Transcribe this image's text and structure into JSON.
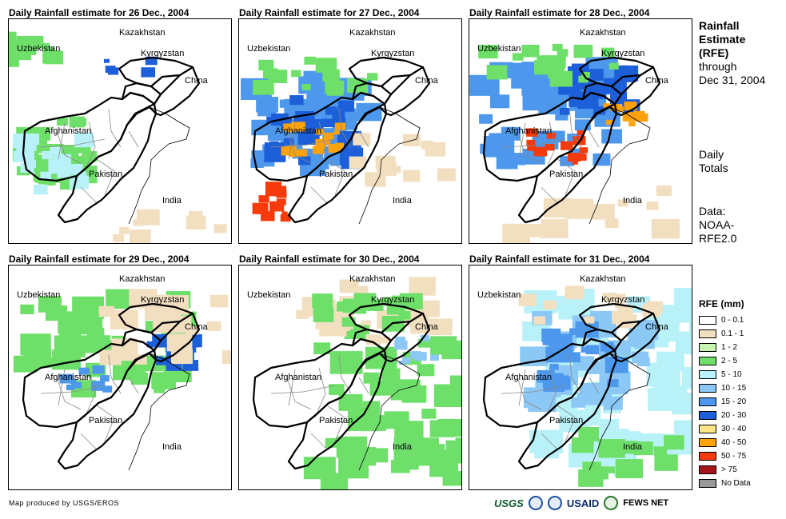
{
  "panels": [
    {
      "title": "Daily Rainfall estimate for 26 Dec., 2004"
    },
    {
      "title": "Daily Rainfall estimate for 27 Dec., 2004"
    },
    {
      "title": "Daily Rainfall estimate for 28 Dec., 2004"
    },
    {
      "title": "Daily Rainfall estimate for 29 Dec., 2004"
    },
    {
      "title": "Daily Rainfall estimate for 30 Dec., 2004"
    },
    {
      "title": "Daily Rainfall estimate for 31 Dec., 2004"
    }
  ],
  "map_labels": {
    "kazakhstan": "Kazakhstan",
    "uzbekistan": "Uzbekistan",
    "kyrgyzstan": "Kyrgyzstan",
    "china": "China",
    "afghanistan": "Afghanistan",
    "pakistan": "Pakistan",
    "india": "India"
  },
  "side": {
    "title_line1": "Rainfall",
    "title_line2": "Estimate",
    "title_line3": "(RFE)",
    "through": "through",
    "date": "Dec 31, 2004",
    "daily1": "Daily",
    "daily2": "Totals",
    "data1": "Data:",
    "data2": "NOAA-",
    "data3": "RFE2.0"
  },
  "legend": {
    "title": "RFE (mm)",
    "items": [
      {
        "label": "0 - 0.1",
        "color": "#ffffff"
      },
      {
        "label": "0.1 - 1",
        "color": "#f2dfc0"
      },
      {
        "label": "1 - 2",
        "color": "#c6f5b4"
      },
      {
        "label": "2 - 5",
        "color": "#6ee06a"
      },
      {
        "label": "5 - 10",
        "color": "#b8f2f8"
      },
      {
        "label": "10 - 15",
        "color": "#8cc8f5"
      },
      {
        "label": "15 - 20",
        "color": "#4d98ec"
      },
      {
        "label": "20 - 30",
        "color": "#1d5fd8"
      },
      {
        "label": "30 - 40",
        "color": "#fce487"
      },
      {
        "label": "40 - 50",
        "color": "#fca20a"
      },
      {
        "label": "50 - 75",
        "color": "#f53a0c"
      },
      {
        "label": "> 75",
        "color": "#a5161c"
      },
      {
        "label": "No Data",
        "color": "#999999"
      }
    ]
  },
  "credit": "Map produced by USGS/EROS",
  "logos": {
    "usgs": "USGS",
    "usaid": "USAID",
    "fews": "FEWS NET"
  }
}
